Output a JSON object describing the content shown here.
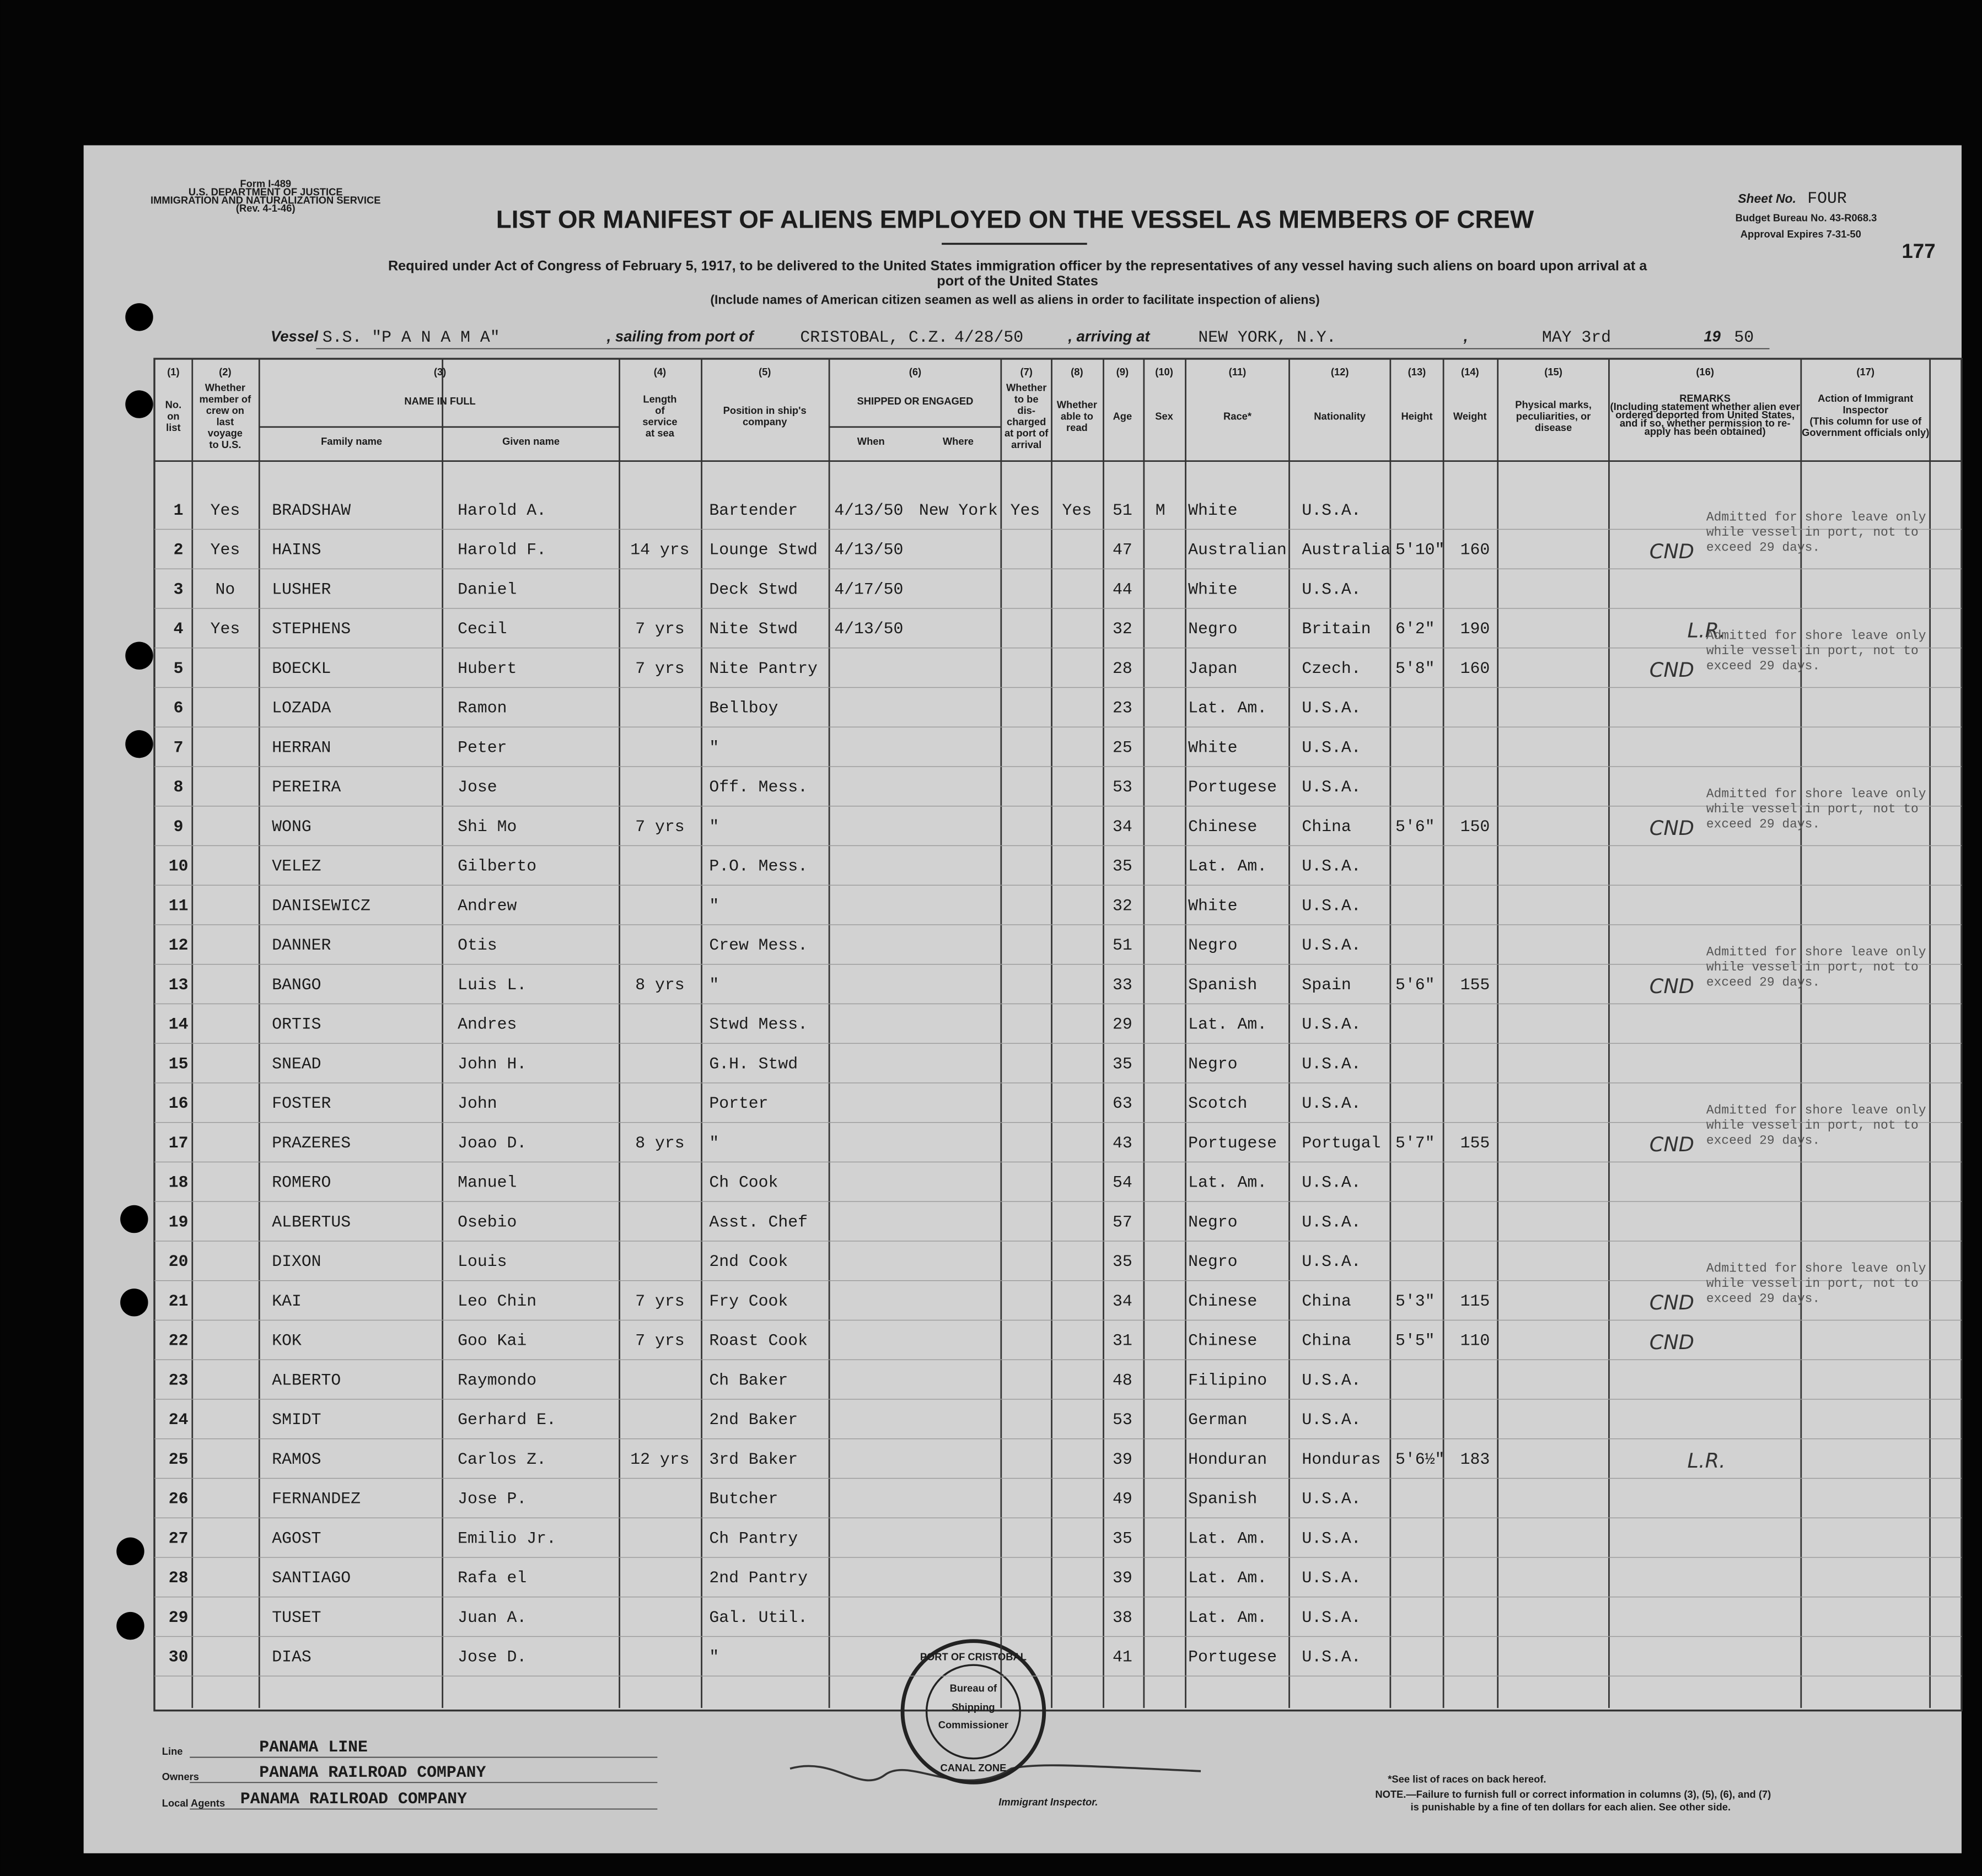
{
  "form_info": [
    "Form I-489",
    "U.S. DEPARTMENT OF JUSTICE",
    "IMMIGRATION AND NATURALIZATION SERVICE",
    "(Rev. 4-1-46)"
  ],
  "sheet_label": "Sheet No.",
  "sheet_value": "FOUR",
  "budget": "Budget Bureau No. 43-R068.3",
  "approval": "Approval Expires 7-31-50",
  "page_number": "177",
  "title": "LIST OR MANIFEST OF ALIENS EMPLOYED ON THE VESSEL AS MEMBERS OF CREW",
  "subtitle": [
    "Required under Act of Congress of February 5, 1917, to be delivered to the United States immigration officer by the representatives of any vessel having such aliens on board upon arrival at a",
    "port of the United States"
  ],
  "note": "(Include names of American citizen seamen as well as aliens in order to facilitate inspection of aliens)",
  "vessel": {
    "vessel_label": "Vessel",
    "vessel": "S.S. \"P A N A M A\"",
    "sailing_label": ", sailing from port of",
    "port": "CRISTOBAL, C.Z.",
    "date": "4/28/50",
    "arriving_label": ", arriving at",
    "destination": "NEW YORK, N.Y.",
    "comma": ",",
    "arrival_date": "MAY 3rd",
    "year_prefix": "19",
    "year": "50"
  },
  "columns": [
    {
      "number": "(1)",
      "lines": [
        "No.",
        "on",
        "list"
      ]
    },
    {
      "number": "(2)",
      "lines": [
        "Whether",
        "member of",
        "crew on",
        "last",
        "voyage",
        "to U.S."
      ]
    },
    {
      "number": "(3)",
      "lines": [
        "NAME IN FULL"
      ],
      "subheaders": [
        "Family name",
        "Given name"
      ]
    },
    {
      "number": "(4)",
      "lines": [
        "Length",
        "of",
        "service",
        "at sea"
      ]
    },
    {
      "number": "(5)",
      "lines": [
        "Position in ship's",
        "company"
      ]
    },
    {
      "number": "(6)",
      "lines": [
        "SHIPPED OR ENGAGED"
      ],
      "subheaders": [
        "When",
        "Where"
      ]
    },
    {
      "number": "(7)",
      "lines": [
        "Whether",
        "to be",
        "dis-",
        "charged",
        "at port of",
        "arrival"
      ]
    },
    {
      "number": "(8)",
      "lines": [
        "Whether",
        "able to",
        "read"
      ]
    },
    {
      "number": "(9)",
      "lines": [
        "Age"
      ]
    },
    {
      "number": "(10)",
      "lines": [
        "Sex"
      ]
    },
    {
      "number": "(11)",
      "lines": [
        "Race*"
      ]
    },
    {
      "number": "(12)",
      "lines": [
        "Nationality"
      ]
    },
    {
      "number": "(13)",
      "lines": [
        "Height"
      ]
    },
    {
      "number": "(14)",
      "lines": [
        "Weight"
      ]
    },
    {
      "number": "(15)",
      "lines": [
        "Physical marks,",
        "peculiarities, or",
        "disease"
      ]
    },
    {
      "number": "(16)",
      "lines": [
        "REMARKS",
        "(Including statement whether alien ever",
        "ordered deported from United States,",
        "and if so, whether permission to re-",
        "apply has been obtained)"
      ]
    },
    {
      "number": "(17)",
      "lines": [
        "Action of Immigrant",
        "Inspector",
        "(This column for use of",
        "Government officials only)"
      ]
    }
  ],
  "rows": [
    {
      "no": "1",
      "prior": "Yes",
      "family": "BRADSHAW",
      "given": "Harold A.",
      "position": "Bartender",
      "when": "4/13/50",
      "where": "New York",
      "discharged": "Yes",
      "read": "Yes",
      "age": "51",
      "sex": "M",
      "race": "White",
      "nationality": "U.S.A."
    },
    {
      "no": "2",
      "prior": "Yes",
      "family": "HAINS",
      "given": "Harold F.",
      "service": "14 yrs",
      "position": "Lounge Stwd",
      "when": "4/13/50",
      "age": "47",
      "race": "Australian",
      "nationality": "Australia",
      "height": "5'10\"",
      "weight": "160",
      "remarks": [
        "Admitted for shore leave only",
        "while vessel in port, not to",
        "exceed 29 days."
      ],
      "handnote": "CND"
    },
    {
      "no": "3",
      "prior": "No",
      "family": "LUSHER",
      "given": "Daniel",
      "position": "Deck Stwd",
      "when": "4/17/50",
      "age": "44",
      "race": "White",
      "nationality": "U.S.A."
    },
    {
      "no": "4",
      "prior": "Yes",
      "family": "STEPHENS",
      "given": "Cecil",
      "service": "7 yrs",
      "position": "Nite Stwd",
      "when": "4/13/50",
      "age": "32",
      "race": "Negro",
      "nationality": "Britain",
      "height": "6'2\"",
      "weight": "190",
      "handnote": "L.R."
    },
    {
      "no": "5",
      "family": "BOECKL",
      "given": "Hubert",
      "service": "7 yrs",
      "position": "Nite Pantry",
      "age": "28",
      "race": "Japan",
      "nationality": "Czech.",
      "height": "5'8\"",
      "weight": "160",
      "remarks": [
        "Admitted for shore leave only",
        "while vessel in port, not to",
        "exceed 29 days."
      ],
      "handnote": "CND"
    },
    {
      "no": "6",
      "family": "LOZADA",
      "given": "Ramon",
      "position": "Bellboy",
      "age": "23",
      "race": "Lat. Am.",
      "nationality": "U.S.A."
    },
    {
      "no": "7",
      "family": "HERRAN",
      "given": "Peter",
      "position": "\"",
      "age": "25",
      "race": "White",
      "nationality": "U.S.A."
    },
    {
      "no": "8",
      "family": "PEREIRA",
      "given": "Jose",
      "position": "Off. Mess.",
      "age": "53",
      "race": "Portugese",
      "nationality": "U.S.A."
    },
    {
      "no": "9",
      "family": "WONG",
      "given": "Shi Mo",
      "service": "7 yrs",
      "position": "\"",
      "age": "34",
      "race": "Chinese",
      "nationality": "China",
      "height": "5'6\"",
      "weight": "150",
      "remarks": [
        "Admitted for shore leave only",
        "while vessel in port, not to",
        "exceed 29 days."
      ],
      "handnote": "CND"
    },
    {
      "no": "10",
      "family": "VELEZ",
      "given": "Gilberto",
      "position": "P.O. Mess.",
      "age": "35",
      "race": "Lat. Am.",
      "nationality": "U.S.A."
    },
    {
      "no": "11",
      "family": "DANISEWICZ",
      "given": "Andrew",
      "position": "\"",
      "age": "32",
      "race": "White",
      "nationality": "U.S.A."
    },
    {
      "no": "12",
      "family": "DANNER",
      "given": "Otis",
      "position": "Crew Mess.",
      "age": "51",
      "race": "Negro",
      "nationality": "U.S.A."
    },
    {
      "no": "13",
      "family": "BANGO",
      "given": "Luis L.",
      "service": "8 yrs",
      "position": "\"",
      "age": "33",
      "race": "Spanish",
      "nationality": "Spain",
      "height": "5'6\"",
      "weight": "155",
      "remarks": [
        "Admitted for shore leave only",
        "while vessel in port, not to",
        "exceed 29 days."
      ],
      "handnote": "CND"
    },
    {
      "no": "14",
      "family": "ORTIS",
      "given": "Andres",
      "position": "Stwd Mess.",
      "age": "29",
      "race": "Lat. Am.",
      "nationality": "U.S.A."
    },
    {
      "no": "15",
      "family": "SNEAD",
      "given": "John H.",
      "position": "G.H. Stwd",
      "age": "35",
      "race": "Negro",
      "nationality": "U.S.A."
    },
    {
      "no": "16",
      "family": "FOSTER",
      "given": "John",
      "position": "Porter",
      "age": "63",
      "race": "Scotch",
      "nationality": "U.S.A."
    },
    {
      "no": "17",
      "family": "PRAZERES",
      "given": "Joao D.",
      "service": "8 yrs",
      "position": "\"",
      "age": "43",
      "race": "Portugese",
      "nationality": "Portugal",
      "height": "5'7\"",
      "weight": "155",
      "remarks": [
        "Admitted for shore leave only",
        "while vessel in port, not to",
        "exceed 29 days."
      ],
      "handnote": "CND"
    },
    {
      "no": "18",
      "family": "ROMERO",
      "given": "Manuel",
      "position": "Ch Cook",
      "age": "54",
      "race": "Lat. Am.",
      "nationality": "U.S.A."
    },
    {
      "no": "19",
      "family": "ALBERTUS",
      "given": "Osebio",
      "position": "Asst. Chef",
      "age": "57",
      "race": "Negro",
      "nationality": "U.S.A."
    },
    {
      "no": "20",
      "family": "DIXON",
      "given": "Louis",
      "position": "2nd Cook",
      "age": "35",
      "race": "Negro",
      "nationality": "U.S.A."
    },
    {
      "no": "21",
      "family": "KAI",
      "given": "Leo Chin",
      "service": "7 yrs",
      "position": "Fry Cook",
      "age": "34",
      "race": "Chinese",
      "nationality": "China",
      "height": "5'3\"",
      "weight": "115",
      "remarks": [
        "Admitted for shore leave only",
        "while vessel in port, not to",
        "exceed 29 days."
      ],
      "handnote": "CND"
    },
    {
      "no": "22",
      "family": "KOK",
      "given": "Goo Kai",
      "service": "7 yrs",
      "position": "Roast Cook",
      "age": "31",
      "race": "Chinese",
      "nationality": "China",
      "height": "5'5\"",
      "weight": "110",
      "handnote": "CND"
    },
    {
      "no": "23",
      "family": "ALBERTO",
      "given": "Raymondo",
      "position": "Ch Baker",
      "age": "48",
      "race": "Filipino",
      "nationality": "U.S.A."
    },
    {
      "no": "24",
      "family": "SMIDT",
      "given": "Gerhard E.",
      "position": "2nd Baker",
      "age": "53",
      "race": "German",
      "nationality": "U.S.A."
    },
    {
      "no": "25",
      "family": "RAMOS",
      "given": "Carlos Z.",
      "service": "12 yrs",
      "position": "3rd Baker",
      "age": "39",
      "race": "Honduran",
      "nationality": "Honduras",
      "height": "5'6½\"",
      "weight": "183",
      "handnote": "L.R."
    },
    {
      "no": "26",
      "family": "FERNANDEZ",
      "given": "Jose P.",
      "position": "Butcher",
      "age": "49",
      "race": "Spanish",
      "nationality": "U.S.A."
    },
    {
      "no": "27",
      "family": "AGOST",
      "given": "Emilio Jr.",
      "position": "Ch Pantry",
      "age": "35",
      "race": "Lat. Am.",
      "nationality": "U.S.A."
    },
    {
      "no": "28",
      "family": "SANTIAGO",
      "given": "Rafa el",
      "position": "2nd Pantry",
      "age": "39",
      "race": "Lat. Am.",
      "nationality": "U.S.A."
    },
    {
      "no": "29",
      "family": "TUSET",
      "given": "Juan A.",
      "position": "Gal. Util.",
      "age": "38",
      "race": "Lat. Am.",
      "nationality": "U.S.A."
    },
    {
      "no": "30",
      "family": "DIAS",
      "given": "Jose D.",
      "position": "\"",
      "age": "41",
      "race": "Portugese",
      "nationality": "U.S.A."
    }
  ],
  "footer": {
    "line_label": "Line",
    "line": "PANAMA LINE",
    "owners_label": "Owners",
    "owners": "PANAMA RAILROAD COMPANY",
    "agents_label": "Local Agents",
    "agents": "PANAMA RAILROAD COMPANY",
    "inspector": "Immigrant Inspector.",
    "stamp": [
      "PORT OF CRISTOBAL",
      "Bureau of",
      "Shipping",
      "Commissioner",
      "CANAL ZONE"
    ],
    "races_note": "*See list of races on back hereof.",
    "penalty": [
      "NOTE.—Failure to furnish full or correct information in columns (3), (5), (6), and (7)",
      "is punishable by a fine of ten dollars for each alien. See other side."
    ]
  }
}
